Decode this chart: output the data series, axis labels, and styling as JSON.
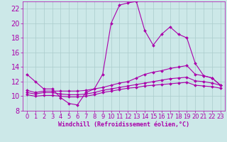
{
  "xlabel": "Windchill (Refroidissement éolien,°C)",
  "bg_color": "#cce8e8",
  "grid_color": "#aacccc",
  "line_color": "#aa00aa",
  "xlim": [
    -0.5,
    23.5
  ],
  "ylim": [
    8,
    23
  ],
  "xticks": [
    0,
    1,
    2,
    3,
    4,
    5,
    6,
    7,
    8,
    9,
    10,
    11,
    12,
    13,
    14,
    15,
    16,
    17,
    18,
    19,
    20,
    21,
    22,
    23
  ],
  "yticks": [
    8,
    10,
    12,
    14,
    16,
    18,
    20,
    22
  ],
  "line1_x": [
    0,
    1,
    2,
    3,
    4,
    5,
    6,
    7,
    8,
    9,
    10,
    11,
    12,
    13,
    14,
    15,
    16,
    17,
    18,
    19,
    20,
    21,
    22,
    23
  ],
  "line1_y": [
    13,
    12,
    11,
    11,
    9.8,
    9.0,
    8.8,
    10.5,
    11,
    13,
    20,
    22.5,
    22.8,
    23,
    19,
    17,
    18.5,
    19.5,
    18.5,
    18,
    14.5,
    12.8,
    12.5,
    11.5
  ],
  "line2_x": [
    0,
    1,
    2,
    3,
    4,
    5,
    6,
    7,
    8,
    9,
    10,
    11,
    12,
    13,
    14,
    15,
    16,
    17,
    18,
    19,
    20,
    21,
    22,
    23
  ],
  "line2_y": [
    10.8,
    10.5,
    10.7,
    10.7,
    10.7,
    10.7,
    10.7,
    10.8,
    11.0,
    11.2,
    11.5,
    11.8,
    12.0,
    12.5,
    13.0,
    13.3,
    13.5,
    13.8,
    14.0,
    14.2,
    13.0,
    12.8,
    12.5,
    11.5
  ],
  "line3_x": [
    0,
    1,
    2,
    3,
    4,
    5,
    6,
    7,
    8,
    9,
    10,
    11,
    12,
    13,
    14,
    15,
    16,
    17,
    18,
    19,
    20,
    21,
    22,
    23
  ],
  "line3_y": [
    10.5,
    10.3,
    10.5,
    10.5,
    10.3,
    10.2,
    10.2,
    10.3,
    10.5,
    10.8,
    11.0,
    11.2,
    11.4,
    11.6,
    11.8,
    12.0,
    12.2,
    12.4,
    12.5,
    12.6,
    12.1,
    12.0,
    11.8,
    11.5
  ],
  "line4_x": [
    0,
    1,
    2,
    3,
    4,
    5,
    6,
    7,
    8,
    9,
    10,
    11,
    12,
    13,
    14,
    15,
    16,
    17,
    18,
    19,
    20,
    21,
    22,
    23
  ],
  "line4_y": [
    10.2,
    10.0,
    10.1,
    10.1,
    10.0,
    9.9,
    9.9,
    10.0,
    10.2,
    10.5,
    10.7,
    10.9,
    11.1,
    11.2,
    11.4,
    11.5,
    11.6,
    11.7,
    11.8,
    11.9,
    11.5,
    11.4,
    11.3,
    11.1
  ],
  "tick_fontsize": 6,
  "xlabel_fontsize": 6,
  "marker_size": 2,
  "line_width": 0.8
}
